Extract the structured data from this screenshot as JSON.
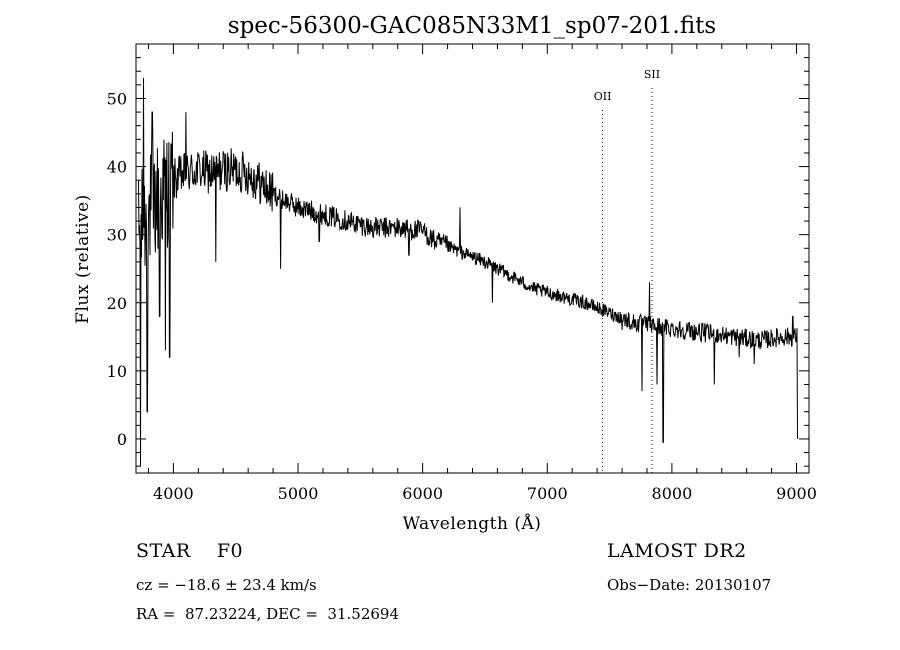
{
  "chart_data": {
    "type": "line",
    "title": "spec-56300-GAC085N33M1_sp07-201.fits",
    "xlabel": "Wavelength (Å)",
    "ylabel": "Flux (relative)",
    "xlim": [
      3700,
      9100
    ],
    "ylim": [
      -5,
      58
    ],
    "x_ticks": [
      4000,
      5000,
      6000,
      7000,
      8000,
      9000
    ],
    "y_ticks": [
      0,
      10,
      20,
      30,
      40,
      50
    ],
    "grid": false,
    "line_color": "#000000",
    "continuum": [
      {
        "x": 3720,
        "y": 30
      },
      {
        "x": 3800,
        "y": 33
      },
      {
        "x": 3900,
        "y": 36
      },
      {
        "x": 4000,
        "y": 38
      },
      {
        "x": 4100,
        "y": 39
      },
      {
        "x": 4200,
        "y": 39.5
      },
      {
        "x": 4300,
        "y": 39
      },
      {
        "x": 4400,
        "y": 39.5
      },
      {
        "x": 4500,
        "y": 39.5
      },
      {
        "x": 4600,
        "y": 39
      },
      {
        "x": 4700,
        "y": 37.5
      },
      {
        "x": 4800,
        "y": 36
      },
      {
        "x": 4900,
        "y": 35
      },
      {
        "x": 5000,
        "y": 34
      },
      {
        "x": 5200,
        "y": 33
      },
      {
        "x": 5400,
        "y": 32
      },
      {
        "x": 5600,
        "y": 31
      },
      {
        "x": 5800,
        "y": 31
      },
      {
        "x": 6000,
        "y": 30.5
      },
      {
        "x": 6100,
        "y": 29
      },
      {
        "x": 6300,
        "y": 27.5
      },
      {
        "x": 6500,
        "y": 26
      },
      {
        "x": 6700,
        "y": 24
      },
      {
        "x": 6900,
        "y": 22
      },
      {
        "x": 7100,
        "y": 21
      },
      {
        "x": 7300,
        "y": 20
      },
      {
        "x": 7500,
        "y": 18.5
      },
      {
        "x": 7700,
        "y": 17
      },
      {
        "x": 7900,
        "y": 16.5
      },
      {
        "x": 8100,
        "y": 16
      },
      {
        "x": 8300,
        "y": 15.5
      },
      {
        "x": 8500,
        "y": 15
      },
      {
        "x": 8700,
        "y": 14.5
      },
      {
        "x": 8900,
        "y": 15
      },
      {
        "x": 9000,
        "y": 15
      }
    ],
    "features": [
      {
        "x": 3735,
        "y": -4
      },
      {
        "x": 3760,
        "y": 53
      },
      {
        "x": 3790,
        "y": 4
      },
      {
        "x": 3830,
        "y": 48
      },
      {
        "x": 3890,
        "y": 18
      },
      {
        "x": 3935,
        "y": 13
      },
      {
        "x": 3970,
        "y": 12
      },
      {
        "x": 4100,
        "y": 48
      },
      {
        "x": 4340,
        "y": 26
      },
      {
        "x": 4860,
        "y": 25
      },
      {
        "x": 5170,
        "y": 29
      },
      {
        "x": 5890,
        "y": 27
      },
      {
        "x": 6300,
        "y": 34
      },
      {
        "x": 6560,
        "y": 20
      },
      {
        "x": 7600,
        "y": 16
      },
      {
        "x": 7760,
        "y": 7
      },
      {
        "x": 7820,
        "y": 23
      },
      {
        "x": 7880,
        "y": 8
      },
      {
        "x": 7930,
        "y": -0.5
      },
      {
        "x": 8340,
        "y": 8
      },
      {
        "x": 8540,
        "y": 12
      },
      {
        "x": 8660,
        "y": 11
      },
      {
        "x": 8970,
        "y": 18
      },
      {
        "x": 9010,
        "y": 0
      }
    ],
    "lines": [
      {
        "label": "OII",
        "x": 7444
      },
      {
        "label": "SII",
        "x": 7840
      }
    ]
  },
  "info": {
    "object_type": "STAR    F0",
    "survey": "LAMOST DR2",
    "cz": "cz = −18.6 ± 23.4 km/s",
    "obs_date": "Obs−Date: 20130107",
    "ra_dec": "RA =  87.23224, DEC =  31.52694"
  }
}
